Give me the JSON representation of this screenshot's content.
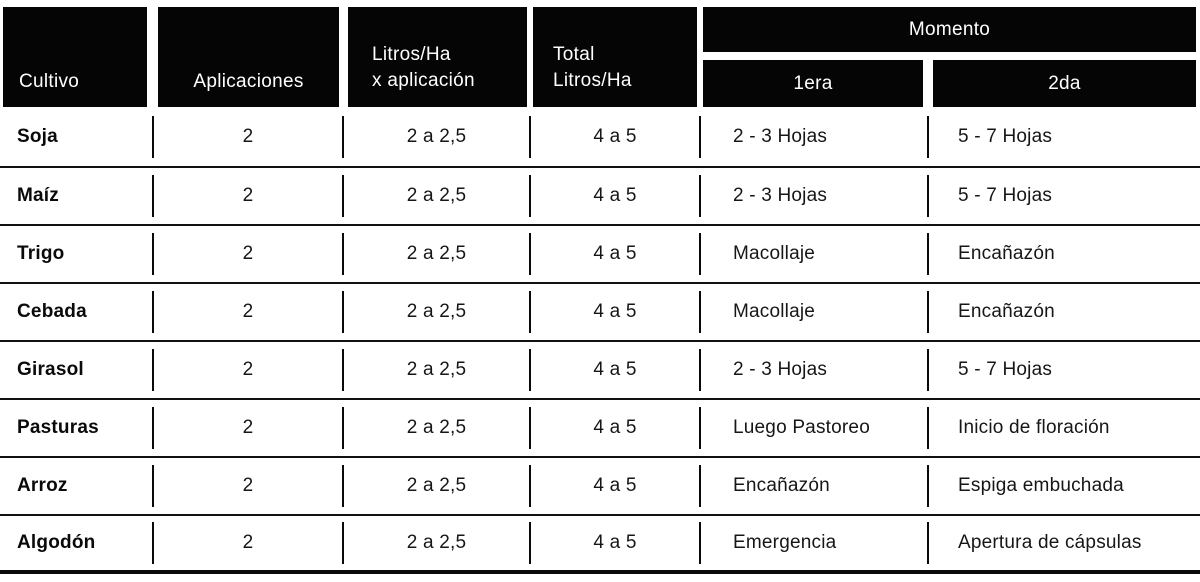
{
  "colors": {
    "header_bg": "#050505",
    "header_text": "#ffffff",
    "body_text": "#161616",
    "divider": "#111111"
  },
  "table": {
    "headers": {
      "cultivo": "Cultivo",
      "aplicaciones": "Aplicaciones",
      "litros_line1": "Litros/Ha",
      "litros_line2": "x aplicación",
      "total_line1": "Total",
      "total_line2": "Litros/Ha",
      "momento": "Momento",
      "momento_1era": "1era",
      "momento_2da": "2da"
    },
    "rows": [
      {
        "cultivo": "Soja",
        "aplicaciones": "2",
        "litros": "2 a 2,5",
        "total": "4 a 5",
        "primera": "2 - 3 Hojas",
        "segunda": "5 - 7 Hojas"
      },
      {
        "cultivo": "Maíz",
        "aplicaciones": "2",
        "litros": "2 a 2,5",
        "total": "4 a 5",
        "primera": "2 - 3 Hojas",
        "segunda": "5 - 7 Hojas"
      },
      {
        "cultivo": "Trigo",
        "aplicaciones": "2",
        "litros": "2 a 2,5",
        "total": "4 a 5",
        "primera": "Macollaje",
        "segunda": "Encañazón"
      },
      {
        "cultivo": "Cebada",
        "aplicaciones": "2",
        "litros": "2 a 2,5",
        "total": "4 a 5",
        "primera": "Macollaje",
        "segunda": "Encañazón"
      },
      {
        "cultivo": "Girasol",
        "aplicaciones": "2",
        "litros": "2 a 2,5",
        "total": "4 a 5",
        "primera": "2 - 3 Hojas",
        "segunda": "5 - 7 Hojas"
      },
      {
        "cultivo": "Pasturas",
        "aplicaciones": "2",
        "litros": "2 a 2,5",
        "total": "4 a 5",
        "primera": "Luego Pastoreo",
        "segunda": "Inicio de floración"
      },
      {
        "cultivo": "Arroz",
        "aplicaciones": "2",
        "litros": "2 a 2,5",
        "total": "4 a 5",
        "primera": "Encañazón",
        "segunda": "Espiga embuchada"
      },
      {
        "cultivo": "Algodón",
        "aplicaciones": "2",
        "litros": "2 a 2,5",
        "total": "4 a 5",
        "primera": "Emergencia",
        "segunda": "Apertura de cápsulas"
      }
    ]
  }
}
